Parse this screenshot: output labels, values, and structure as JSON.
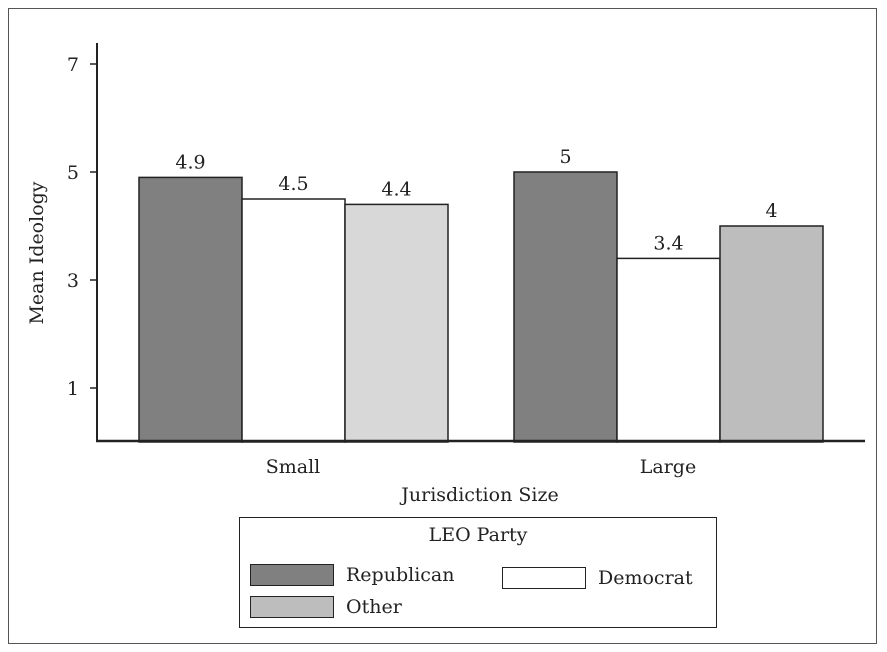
{
  "chart_data": {
    "type": "bar",
    "title": "",
    "xlabel": "Jurisdiction Size",
    "ylabel": "Mean Ideology",
    "categories": [
      "Small",
      "Large"
    ],
    "yticks": [
      "1",
      "3",
      "5",
      "7"
    ],
    "ylim": [
      0,
      7.5
    ],
    "grid": false,
    "series": [
      {
        "name": "Republican",
        "values": [
          4.9,
          5
        ],
        "labels": [
          "4.9",
          "5"
        ],
        "color": "#808080"
      },
      {
        "name": "Democrat",
        "values": [
          4.5,
          3.4
        ],
        "labels": [
          "4.5",
          "3.4"
        ],
        "color": "#ffffff"
      },
      {
        "name": "Other",
        "values": [
          4.4,
          4
        ],
        "labels": [
          "4.4",
          "4"
        ],
        "color": "#d8d8d8"
      }
    ],
    "bar_colors_by_category": [
      [
        "#808080",
        "#ffffff",
        "#d8d8d8"
      ],
      [
        "#808080",
        "#ffffff",
        "#bdbdbd"
      ]
    ],
    "legend": {
      "title": "LEO Party",
      "placement": "bottom-center",
      "items": [
        {
          "label": "Republican",
          "color": "#808080"
        },
        {
          "label": "Democrat",
          "color": "#ffffff"
        },
        {
          "label": "Other",
          "color": "#bdbdbd"
        }
      ]
    }
  }
}
